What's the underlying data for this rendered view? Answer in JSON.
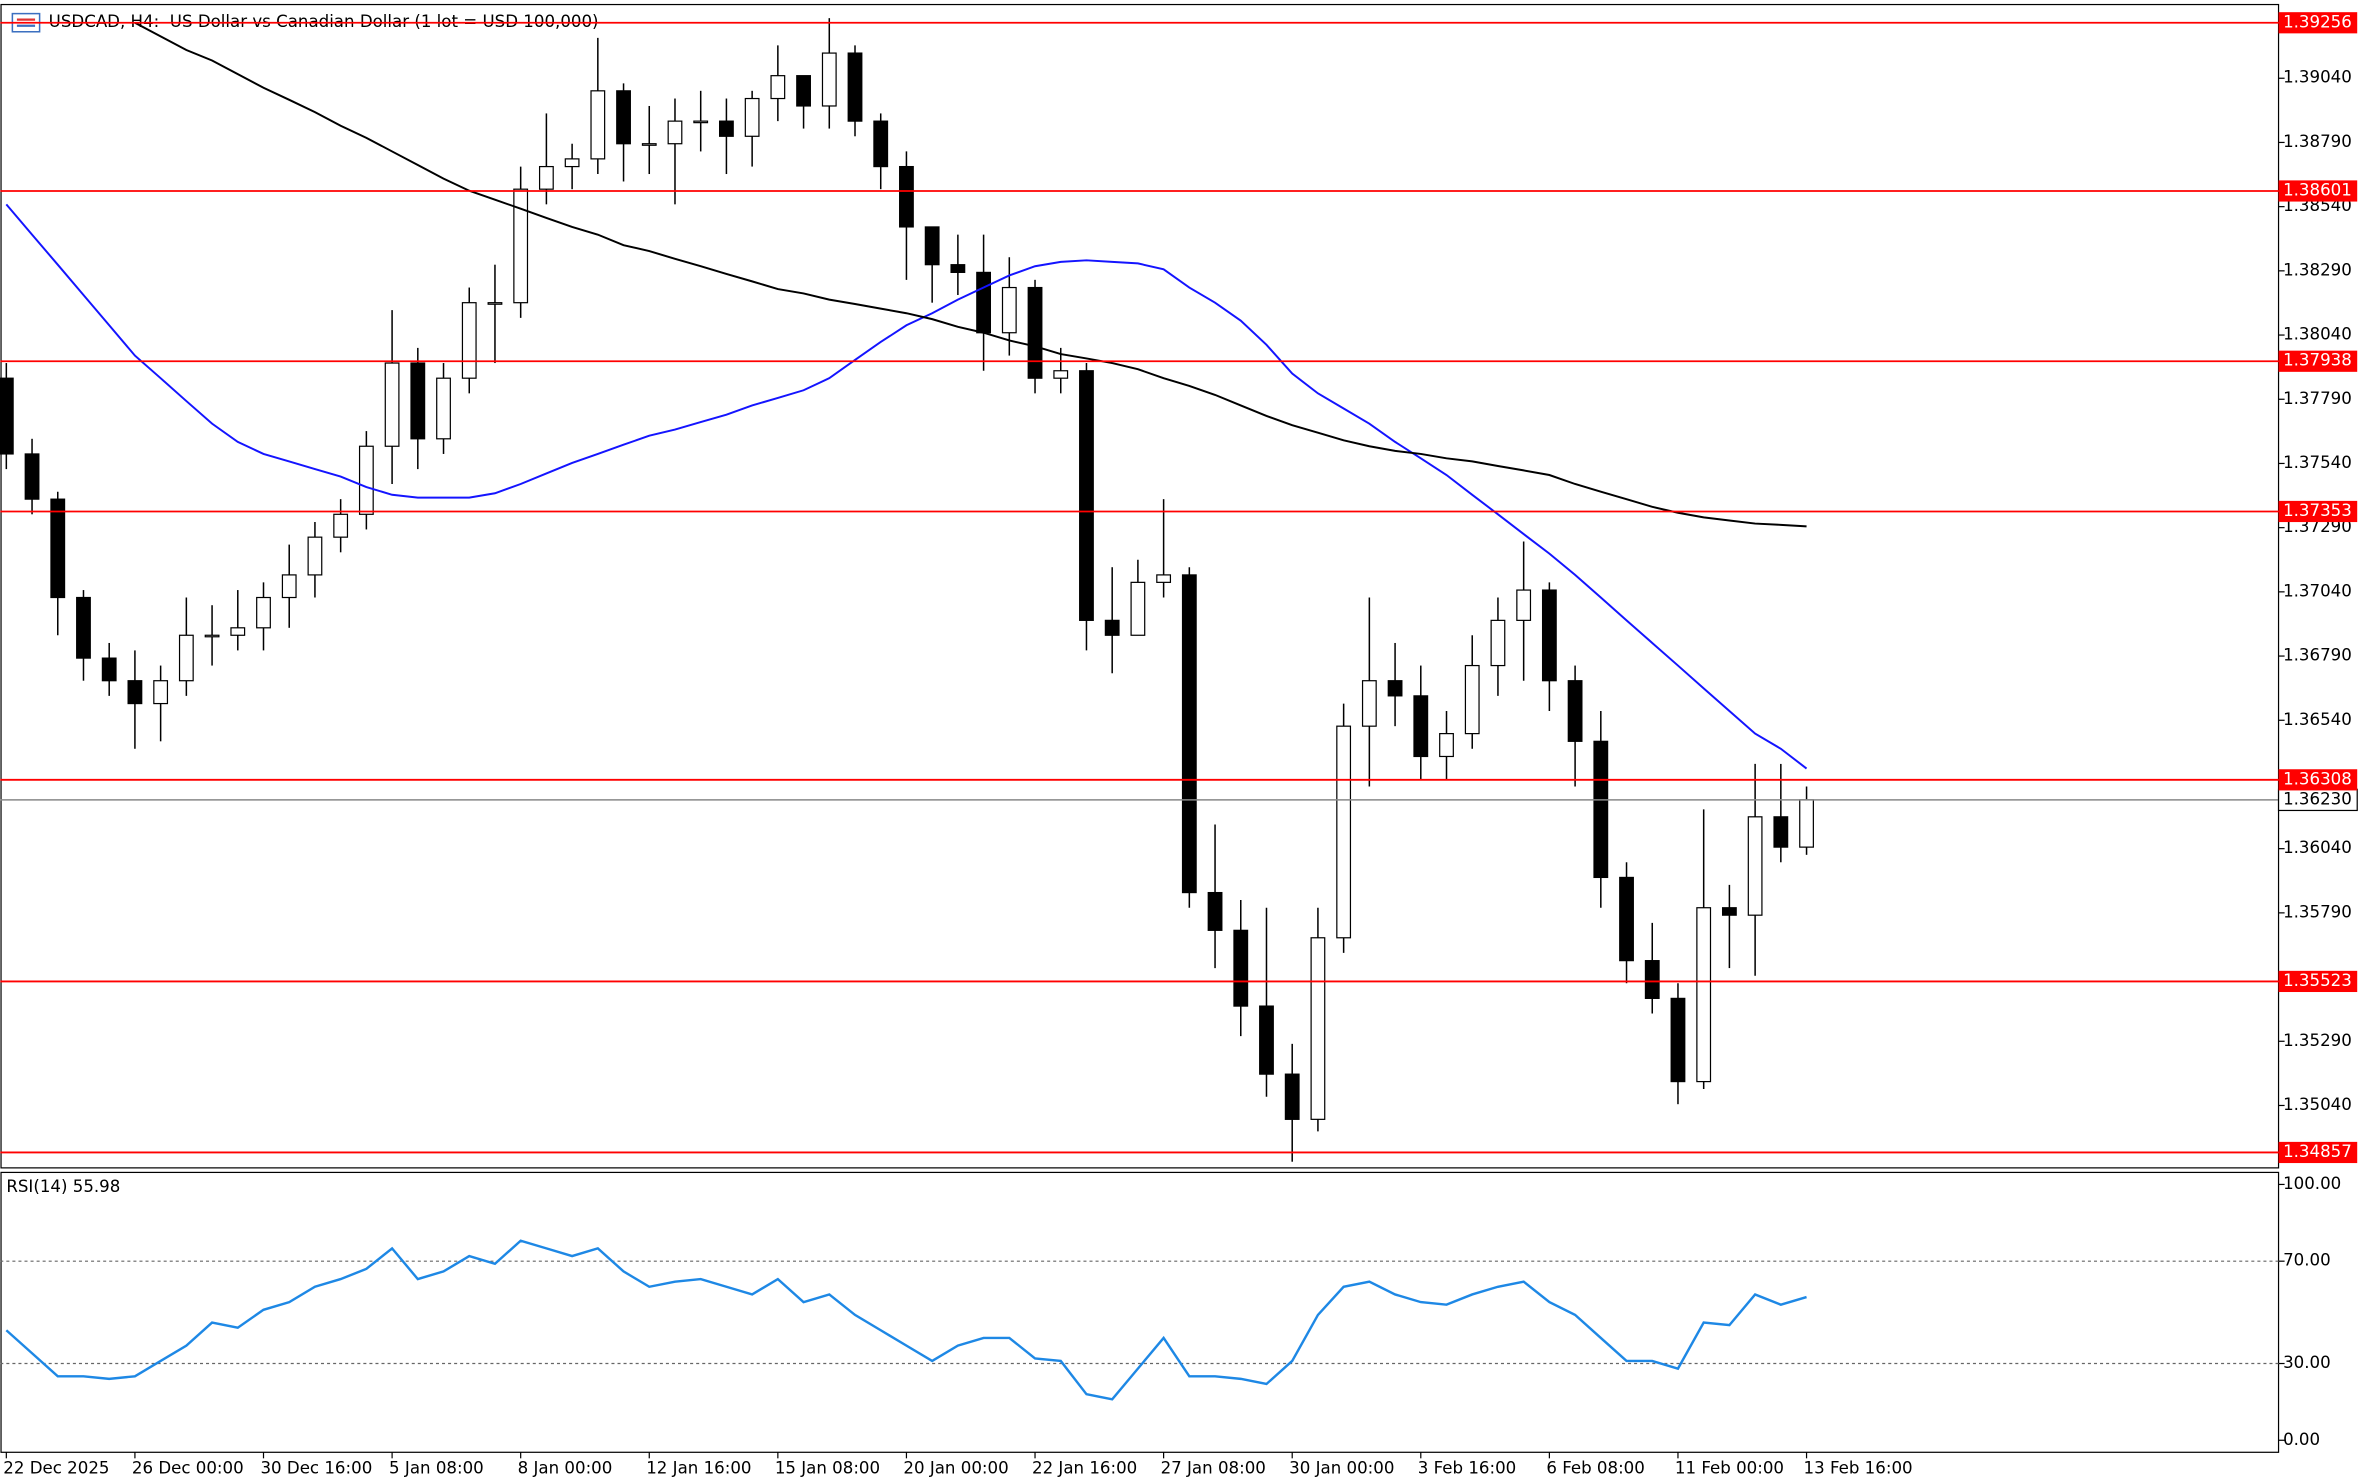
{
  "chart_data": [
    {
      "type": "candlestick",
      "title": "USDCAD, H4:  US Dollar vs Canadian Dollar (1 lot = USD 100,000)",
      "categories": [
        "22 Dec 2025",
        null,
        null,
        null,
        null,
        "26 Dec 00:00",
        null,
        null,
        null,
        null,
        "30 Dec 16:00",
        null,
        null,
        null,
        null,
        "5 Jan 08:00",
        null,
        null,
        null,
        null,
        "8 Jan 00:00",
        null,
        null,
        null,
        null,
        "12 Jan 16:00",
        null,
        null,
        null,
        null,
        "15 Jan 08:00",
        null,
        null,
        null,
        null,
        "20 Jan 00:00",
        null,
        null,
        null,
        null,
        "22 Jan 16:00",
        null,
        null,
        null,
        null,
        "27 Jan 08:00",
        null,
        null,
        null,
        null,
        "30 Jan 00:00",
        null,
        null,
        null,
        null,
        "3 Feb 16:00",
        null,
        null,
        null,
        null,
        "6 Feb 08:00",
        null,
        null,
        null,
        null,
        "11 Feb 00:00",
        null,
        null,
        null,
        null,
        "13 Feb 16:00"
      ],
      "open": [
        1.37872,
        1.37577,
        1.37401,
        1.37018,
        1.36782,
        1.36694,
        1.36605,
        1.36694,
        1.36871,
        1.36871,
        1.369,
        1.37018,
        1.37106,
        1.37253,
        1.37342,
        1.37607,
        1.37931,
        1.37636,
        1.37872,
        1.38166,
        1.38166,
        1.38608,
        1.38696,
        1.38726,
        1.38991,
        1.38785,
        1.38785,
        1.38873,
        1.38873,
        1.38814,
        1.38961,
        1.3905,
        1.38932,
        1.39138,
        1.38873,
        1.38696,
        1.38461,
        1.38314,
        1.38284,
        1.38049,
        1.38225,
        1.37872,
        1.37901,
        1.36929,
        1.36871,
        1.37077,
        1.37106,
        1.35869,
        1.35722,
        1.35427,
        1.35162,
        1.34986,
        1.35693,
        1.36517,
        1.36694,
        1.36635,
        1.36399,
        1.36488,
        1.36753,
        1.36929,
        1.37047,
        1.36694,
        1.36458,
        1.35928,
        1.35604,
        1.35457,
        1.35133,
        1.3581,
        1.35781,
        1.36164,
        1.36046
      ],
      "high": [
        1.37931,
        1.37636,
        1.3743,
        1.37047,
        1.36841,
        1.36812,
        1.36753,
        1.37018,
        1.36988,
        1.37047,
        1.37077,
        1.37224,
        1.37312,
        1.37401,
        1.37666,
        1.38137,
        1.3799,
        1.37931,
        1.38225,
        1.38314,
        1.38696,
        1.38903,
        1.38785,
        1.39197,
        1.3902,
        1.38932,
        1.38961,
        1.38991,
        1.38961,
        1.38991,
        1.39168,
        1.3905,
        1.39274,
        1.39168,
        1.38903,
        1.38755,
        1.38461,
        1.38431,
        1.38431,
        1.38343,
        1.38255,
        1.3799,
        1.37931,
        1.37136,
        1.37165,
        1.37401,
        1.37136,
        1.36134,
        1.3584,
        1.3581,
        1.3528,
        1.3581,
        1.36605,
        1.37018,
        1.36841,
        1.36753,
        1.36576,
        1.36871,
        1.37018,
        1.37236,
        1.37077,
        1.36753,
        1.36576,
        1.35987,
        1.35751,
        1.35516,
        1.36193,
        1.35899,
        1.3637,
        1.3637,
        1.36282
      ],
      "low": [
        1.37518,
        1.37342,
        1.36871,
        1.36694,
        1.36635,
        1.36429,
        1.36458,
        1.36635,
        1.36753,
        1.36812,
        1.36812,
        1.369,
        1.37018,
        1.37194,
        1.37283,
        1.3746,
        1.37518,
        1.37577,
        1.37813,
        1.37931,
        1.38107,
        1.38549,
        1.38608,
        1.38667,
        1.38638,
        1.38667,
        1.38549,
        1.38755,
        1.38667,
        1.38696,
        1.38873,
        1.38844,
        1.38844,
        1.38814,
        1.38608,
        1.38255,
        1.38166,
        1.38196,
        1.37901,
        1.3796,
        1.37813,
        1.37813,
        1.36812,
        1.36723,
        1.369,
        1.37018,
        1.3581,
        1.35575,
        1.3531,
        1.35074,
        1.34821,
        1.34939,
        1.35634,
        1.36282,
        1.36517,
        1.36311,
        1.36311,
        1.36429,
        1.36635,
        1.36694,
        1.36576,
        1.36282,
        1.3581,
        1.35516,
        1.35398,
        1.35045,
        1.35104,
        1.35575,
        1.35545,
        1.35987,
        1.36016
      ],
      "close": [
        1.37577,
        1.37401,
        1.37018,
        1.36782,
        1.36694,
        1.36605,
        1.36694,
        1.36871,
        1.36871,
        1.369,
        1.37018,
        1.37106,
        1.37253,
        1.37342,
        1.37607,
        1.37931,
        1.37636,
        1.37872,
        1.38166,
        1.38166,
        1.38608,
        1.38696,
        1.38726,
        1.38991,
        1.38785,
        1.38785,
        1.38873,
        1.38873,
        1.38814,
        1.38961,
        1.3905,
        1.38932,
        1.39138,
        1.38873,
        1.38696,
        1.38461,
        1.38314,
        1.38284,
        1.38049,
        1.38225,
        1.37872,
        1.37901,
        1.36929,
        1.36871,
        1.37077,
        1.37106,
        1.35869,
        1.35722,
        1.35427,
        1.35162,
        1.34986,
        1.35693,
        1.36517,
        1.36694,
        1.36635,
        1.36399,
        1.36488,
        1.36753,
        1.36929,
        1.37047,
        1.36694,
        1.36458,
        1.35928,
        1.35604,
        1.35457,
        1.35133,
        1.3581,
        1.35781,
        1.36164,
        1.36046,
        1.3623
      ],
      "series": [
        {
          "color": "#1414ff",
          "values": [
            1.38549,
            1.38431,
            1.38314,
            1.38196,
            1.38078,
            1.3796,
            1.37872,
            1.37783,
            1.37695,
            1.37624,
            1.37577,
            1.37548,
            1.37518,
            1.37489,
            1.37448,
            1.37418,
            1.37407,
            1.37407,
            1.37407,
            1.37424,
            1.3746,
            1.37501,
            1.37542,
            1.37577,
            1.37613,
            1.37648,
            1.37672,
            1.37701,
            1.3773,
            1.37766,
            1.37795,
            1.37825,
            1.37872,
            1.37943,
            1.38013,
            1.38078,
            1.38125,
            1.38178,
            1.38225,
            1.38272,
            1.38308,
            1.38325,
            1.38331,
            1.38325,
            1.38319,
            1.38296,
            1.38225,
            1.38166,
            1.38096,
            1.38002,
            1.3789,
            1.37813,
            1.37754,
            1.37695,
            1.37624,
            1.3756,
            1.37495,
            1.37418,
            1.37342,
            1.37265,
            1.37189,
            1.37106,
            1.37018,
            1.36929,
            1.36841,
            1.36753,
            1.36664,
            1.36576,
            1.36488,
            1.36429,
            1.36352
          ]
        },
        {
          "color": "#000000",
          "values": [
            null,
            null,
            null,
            null,
            null,
            1.39256,
            1.39203,
            1.3915,
            1.39109,
            1.39056,
            1.39003,
            1.38956,
            1.38908,
            1.38855,
            1.38808,
            1.38755,
            1.38702,
            1.38649,
            1.38602,
            1.38567,
            1.38532,
            1.38496,
            1.38461,
            1.38431,
            1.3839,
            1.38367,
            1.38337,
            1.38308,
            1.38278,
            1.38249,
            1.38219,
            1.38202,
            1.38178,
            1.38161,
            1.38143,
            1.38125,
            1.38102,
            1.38072,
            1.38049,
            1.38019,
            1.37996,
            1.37966,
            1.37949,
            1.37931,
            1.37907,
            1.37872,
            1.37842,
            1.37807,
            1.37766,
            1.37725,
            1.37689,
            1.3766,
            1.3763,
            1.37607,
            1.37589,
            1.37577,
            1.3756,
            1.37548,
            1.3753,
            1.37513,
            1.37495,
            1.3746,
            1.3743,
            1.37401,
            1.37371,
            1.37348,
            1.3733,
            1.37318,
            1.37306,
            1.37301,
            1.37295
          ]
        }
      ],
      "levels": [
        1.39256,
        1.38601,
        1.37938,
        1.37353,
        1.36308,
        1.35523,
        1.34857
      ],
      "level_color": "#ff0000",
      "current_price": {
        "value": 1.3623,
        "label": "1.36230"
      },
      "ylim": [
        1.34797,
        1.39327
      ],
      "yticks": [
        {
          "value": 1.3904,
          "label": "1.39040"
        },
        {
          "value": 1.3879,
          "label": "1.38790"
        },
        {
          "value": 1.3854,
          "label": "1.38540"
        },
        {
          "value": 1.3829,
          "label": "1.38290"
        },
        {
          "value": 1.3804,
          "label": "1.38040"
        },
        {
          "value": 1.3779,
          "label": "1.37790"
        },
        {
          "value": 1.3754,
          "label": "1.37540"
        },
        {
          "value": 1.3729,
          "label": "1.37290"
        },
        {
          "value": 1.3704,
          "label": "1.37040"
        },
        {
          "value": 1.3679,
          "label": "1.36790"
        },
        {
          "value": 1.3654,
          "label": "1.36540"
        },
        {
          "value": 1.3604,
          "label": "1.36040"
        },
        {
          "value": 1.3579,
          "label": "1.35790"
        },
        {
          "value": 1.3529,
          "label": "1.35290"
        },
        {
          "value": 1.3504,
          "label": "1.35040"
        }
      ]
    },
    {
      "type": "line",
      "title": "RSI(14) 55.98",
      "color": "#1e88e5",
      "values": [
        43,
        34,
        25,
        25,
        24,
        25,
        31,
        37,
        46,
        44,
        51,
        54,
        60,
        63,
        67,
        75,
        63,
        66,
        72,
        69,
        78,
        75,
        72,
        75,
        66,
        60,
        62,
        63,
        60,
        57,
        63,
        54,
        57,
        49,
        43,
        37,
        31,
        37,
        40,
        40,
        32,
        31,
        18,
        16,
        28,
        40,
        25,
        25,
        24,
        22,
        31,
        49,
        60,
        62,
        57,
        54,
        53,
        57,
        60,
        62,
        54,
        49,
        40,
        31,
        31,
        28,
        46,
        45,
        57,
        53,
        55.98
      ],
      "levels": [
        70,
        30
      ],
      "ylim": [
        -4.7,
        104.7
      ],
      "yticks": [
        {
          "value": 100,
          "label": "100.00"
        },
        {
          "value": 70,
          "label": "70.00"
        },
        {
          "value": 30,
          "label": "30.00"
        },
        {
          "value": 0,
          "label": "0.00"
        }
      ]
    }
  ]
}
